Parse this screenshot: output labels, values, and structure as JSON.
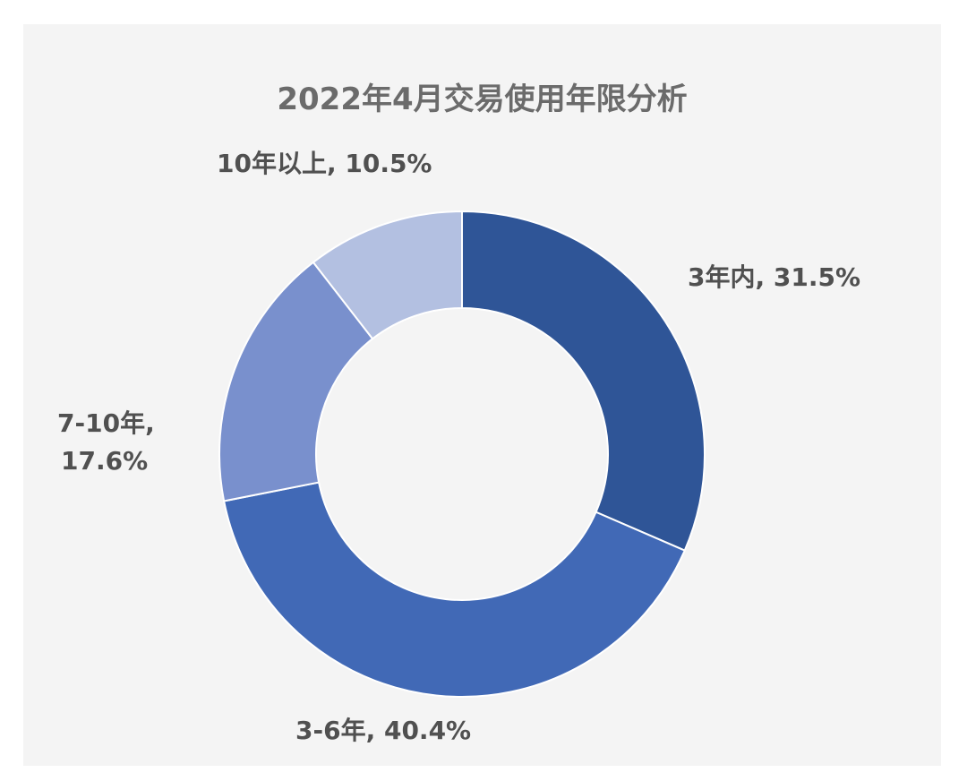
{
  "chart_data": {
    "type": "pie",
    "variant": "donut",
    "title": "2022年4月交易使用年限分析",
    "categories": [
      "3年内",
      "3-6年",
      "7-10年",
      "10年以上"
    ],
    "values": [
      31.5,
      40.4,
      17.6,
      10.5
    ],
    "unit": "%",
    "colors": [
      "#2f5597",
      "#4169b6",
      "#7990cd",
      "#b3c0e1"
    ],
    "data_labels": [
      [
        "3年内, 31.5%"
      ],
      [
        "3-6年, 40.4%"
      ],
      [
        "7-10年,",
        "17.6%"
      ],
      [
        "10年以上, 10.5%"
      ]
    ],
    "legend": "none",
    "start_angle": "12 o'clock",
    "direction": "clockwise"
  }
}
